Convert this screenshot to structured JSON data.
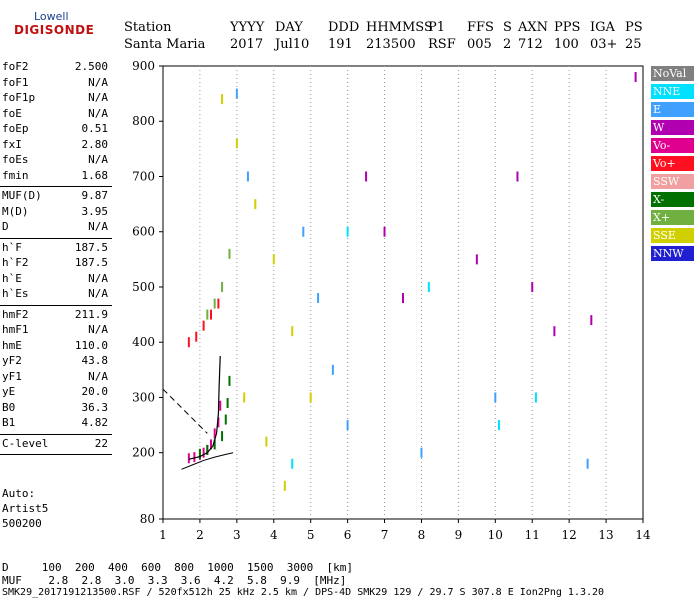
{
  "logo": {
    "top": "Lowell",
    "main": "DIGISONDE"
  },
  "header": {
    "col_labels": [
      "Station",
      "YYYY",
      "DAY",
      "DDD",
      "HHMMSS",
      "P1",
      "FFS",
      "S",
      "AXN",
      "PPS",
      "IGA",
      "PS"
    ],
    "col_values": [
      "Santa Maria",
      "2017",
      "Jul10",
      "191",
      "213500",
      "RSF",
      "005",
      "2",
      "712",
      "100",
      "03+",
      "25"
    ]
  },
  "parameters": [
    {
      "group": [
        {
          "name": "foF2",
          "value": "2.500"
        },
        {
          "name": "foF1",
          "value": "N/A"
        },
        {
          "name": "foF1p",
          "value": "N/A"
        },
        {
          "name": "foE",
          "value": "N/A"
        },
        {
          "name": "foEp",
          "value": "0.51"
        },
        {
          "name": "fxI",
          "value": "2.80"
        },
        {
          "name": "foEs",
          "value": "N/A"
        },
        {
          "name": "fmin",
          "value": "1.68"
        }
      ]
    },
    {
      "group": [
        {
          "name": "MUF(D)",
          "value": "9.87"
        },
        {
          "name": "M(D)",
          "value": "3.95"
        },
        {
          "name": "D",
          "value": "N/A"
        }
      ]
    },
    {
      "group": [
        {
          "name": "h`F",
          "value": "187.5"
        },
        {
          "name": "h`F2",
          "value": "187.5"
        },
        {
          "name": "h`E",
          "value": "N/A"
        },
        {
          "name": "h`Es",
          "value": "N/A"
        }
      ]
    },
    {
      "group": [
        {
          "name": "hmF2",
          "value": "211.9"
        },
        {
          "name": "hmF1",
          "value": "N/A"
        },
        {
          "name": "hmE",
          "value": "110.0"
        },
        {
          "name": "yF2",
          "value": "43.8"
        },
        {
          "name": "yF1",
          "value": "N/A"
        },
        {
          "name": "yE",
          "value": "20.0"
        },
        {
          "name": "B0",
          "value": "36.3"
        },
        {
          "name": "B1",
          "value": "4.82"
        }
      ]
    },
    {
      "group": [
        {
          "name": "C-level",
          "value": "22"
        }
      ]
    }
  ],
  "auto": {
    "line1": "Auto:",
    "line2": "Artist5",
    "line3": "500200"
  },
  "legend": [
    {
      "label": "NoVal",
      "color": "#808080"
    },
    {
      "label": "NNE",
      "color": "#00e0ff"
    },
    {
      "label": "E",
      "color": "#40a0ff"
    },
    {
      "label": "W",
      "color": "#b000b0"
    },
    {
      "label": "Vo-",
      "color": "#e00090"
    },
    {
      "label": "Vo+",
      "color": "#ff1020"
    },
    {
      "label": "SSW",
      "color": "#f0a0a0"
    },
    {
      "label": "X-",
      "color": "#007000"
    },
    {
      "label": "X+",
      "color": "#70b040"
    },
    {
      "label": "SSE",
      "color": "#d0d000"
    },
    {
      "label": "NNW",
      "color": "#2020d0"
    }
  ],
  "footer": {
    "d_row": "D     100  200  400  600  800  1000  1500  3000  [km]",
    "muf_row": "MUF    2.8  2.8  3.0  3.3  3.6  4.2  5.8  9.9  [MHz]",
    "info": "SMK29_2017191213500.RSF / 520fx512h 25 kHz 2.5 km / DPS-4D SMK29 129 / 29.7 S 307.8 E Ion2Png 1.3.20"
  },
  "chart_data": {
    "type": "scatter",
    "title": "",
    "xlabel": "",
    "ylabel": "",
    "xlim": [
      1,
      14
    ],
    "ylim": [
      80,
      900
    ],
    "x_ticks": [
      1,
      2,
      3,
      4,
      5,
      6,
      7,
      8,
      9,
      10,
      11,
      12,
      13,
      14
    ],
    "y_ticks": [
      80,
      200,
      300,
      400,
      500,
      600,
      700,
      800,
      900
    ],
    "grid": "dotted-vertical",
    "legend_position": "right",
    "series": [
      {
        "name": "Vo-",
        "color": "#e00090",
        "points": [
          [
            1.7,
            190
          ],
          [
            1.85,
            192
          ],
          [
            2.0,
            196
          ],
          [
            2.1,
            200
          ],
          [
            2.2,
            205
          ],
          [
            2.3,
            215
          ],
          [
            2.4,
            235
          ],
          [
            2.5,
            255
          ],
          [
            2.55,
            285
          ]
        ]
      },
      {
        "name": "X-",
        "color": "#007000",
        "points": [
          [
            2.0,
            198
          ],
          [
            2.2,
            205
          ],
          [
            2.4,
            215
          ],
          [
            2.6,
            230
          ],
          [
            2.7,
            260
          ],
          [
            2.75,
            290
          ],
          [
            2.8,
            330
          ]
        ]
      },
      {
        "name": "Vo+",
        "color": "#ff1020",
        "points": [
          [
            1.7,
            400
          ],
          [
            1.9,
            410
          ],
          [
            2.1,
            430
          ],
          [
            2.3,
            450
          ],
          [
            2.5,
            470
          ]
        ]
      },
      {
        "name": "X+",
        "color": "#70b040",
        "points": [
          [
            2.2,
            450
          ],
          [
            2.4,
            470
          ],
          [
            2.6,
            500
          ],
          [
            2.8,
            560
          ]
        ]
      },
      {
        "name": "SSE",
        "color": "#d0d000",
        "points": [
          [
            2.6,
            840
          ],
          [
            3.0,
            760
          ],
          [
            3.5,
            650
          ],
          [
            4.0,
            550
          ],
          [
            4.5,
            420
          ],
          [
            5.0,
            300
          ],
          [
            3.2,
            300
          ],
          [
            3.8,
            220
          ],
          [
            4.3,
            140
          ]
        ]
      },
      {
        "name": "E",
        "color": "#40a0ff",
        "points": [
          [
            3.0,
            850
          ],
          [
            3.3,
            700
          ],
          [
            4.8,
            600
          ],
          [
            5.2,
            480
          ],
          [
            5.6,
            350
          ],
          [
            6.0,
            250
          ],
          [
            8.0,
            200
          ],
          [
            10.0,
            300
          ],
          [
            12.5,
            180
          ]
        ]
      },
      {
        "name": "W",
        "color": "#b000b0",
        "points": [
          [
            6.5,
            700
          ],
          [
            7.0,
            600
          ],
          [
            7.5,
            480
          ],
          [
            9.5,
            550
          ],
          [
            10.6,
            700
          ],
          [
            11.0,
            500
          ],
          [
            11.6,
            420
          ],
          [
            12.6,
            440
          ],
          [
            13.8,
            880
          ]
        ]
      },
      {
        "name": "NNE",
        "color": "#00e0ff",
        "points": [
          [
            4.5,
            180
          ],
          [
            6.0,
            600
          ],
          [
            8.2,
            500
          ],
          [
            10.1,
            250
          ],
          [
            11.1,
            300
          ]
        ]
      }
    ],
    "fitted_profile": {
      "name": "profile",
      "color": "#000000",
      "points": [
        [
          1.7,
          188
        ],
        [
          2.0,
          193
        ],
        [
          2.2,
          200
        ],
        [
          2.35,
          212
        ],
        [
          2.45,
          235
        ],
        [
          2.5,
          270
        ],
        [
          2.52,
          320
        ],
        [
          2.55,
          375
        ]
      ]
    },
    "lower_profile": {
      "name": "lower",
      "color": "#000000",
      "points": [
        [
          1.5,
          170
        ],
        [
          1.8,
          178
        ],
        [
          2.1,
          186
        ],
        [
          2.4,
          192
        ],
        [
          2.7,
          197
        ],
        [
          2.9,
          200
        ]
      ]
    },
    "dashed_line": {
      "points": [
        [
          1.0,
          315
        ],
        [
          2.2,
          235
        ]
      ]
    }
  }
}
